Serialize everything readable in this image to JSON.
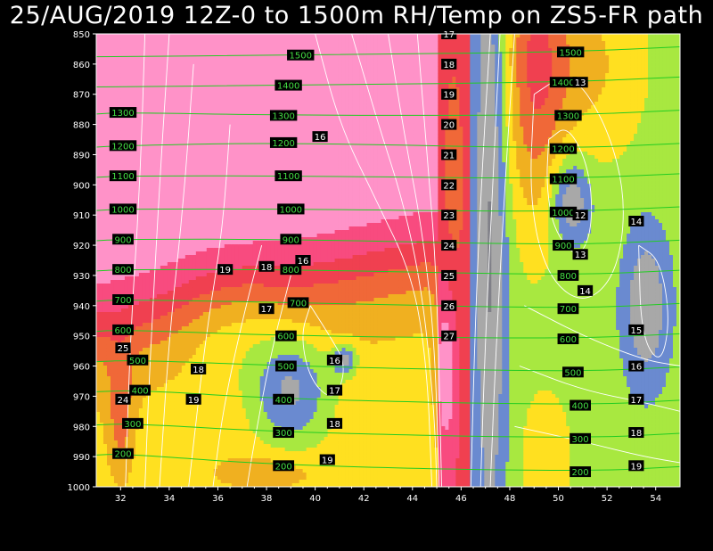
{
  "title": "25/AUG/2019 12Z-0 to 1500m RH/Temp on ZS5-FR path",
  "colors": {
    "background": "#000000",
    "rh_scale": [
      "#202020",
      "#505058",
      "#808088",
      "#a8a8a8",
      "#6a8ad0",
      "#a8e840",
      "#ffe020",
      "#f0b020",
      "#f06838",
      "#f04050",
      "#f84b7f",
      "#ff92c8"
    ],
    "temp_contour": "#ffffff",
    "height_contour": "#22cc22",
    "height_label_bg": "#000000",
    "height_label_text": "#44dd44"
  },
  "chart_data": {
    "type": "heatmap",
    "title": "25/AUG/2019 12Z-0 to 1500m RH/Temp on ZS5-FR path",
    "xlabel": "",
    "ylabel": "",
    "xlim": [
      31,
      55
    ],
    "ylim": [
      1000,
      850
    ],
    "y_scale": "pressure (hPa), decreasing upward",
    "x_ticks": [
      "32",
      "34",
      "36",
      "38",
      "40",
      "42",
      "44",
      "46",
      "48",
      "50",
      "52",
      "54"
    ],
    "y_ticks": [
      "850",
      "860",
      "870",
      "880",
      "890",
      "900",
      "910",
      "920",
      "930",
      "940",
      "950",
      "960",
      "970",
      "980",
      "990",
      "1000"
    ],
    "fill_field": "relative humidity (shaded)",
    "height_contours": {
      "name": "geopotential height (m)",
      "levels": [
        200,
        300,
        400,
        500,
        600,
        700,
        800,
        900,
        1000,
        1100,
        1200,
        1300,
        1400,
        1500
      ],
      "label_points": [
        {
          "v": 1500,
          "x": 39.4,
          "y": 857
        },
        {
          "v": 1400,
          "x": 38.9,
          "y": 867
        },
        {
          "v": 1300,
          "x": 38.7,
          "y": 877
        },
        {
          "v": 1200,
          "x": 38.7,
          "y": 886
        },
        {
          "v": 1100,
          "x": 38.9,
          "y": 897
        },
        {
          "v": 1000,
          "x": 39.0,
          "y": 908
        },
        {
          "v": 900,
          "x": 39.0,
          "y": 918
        },
        {
          "v": 800,
          "x": 39.0,
          "y": 928
        },
        {
          "v": 700,
          "x": 39.3,
          "y": 939
        },
        {
          "v": 600,
          "x": 38.8,
          "y": 950
        },
        {
          "v": 500,
          "x": 38.8,
          "y": 960
        },
        {
          "v": 400,
          "x": 38.7,
          "y": 971
        },
        {
          "v": 300,
          "x": 38.7,
          "y": 982
        },
        {
          "v": 200,
          "x": 38.7,
          "y": 993
        },
        {
          "v": 1300,
          "x": 32.1,
          "y": 876
        },
        {
          "v": 1200,
          "x": 32.1,
          "y": 887
        },
        {
          "v": 1100,
          "x": 32.1,
          "y": 897
        },
        {
          "v": 1000,
          "x": 32.1,
          "y": 908
        },
        {
          "v": 900,
          "x": 32.1,
          "y": 918
        },
        {
          "v": 800,
          "x": 32.1,
          "y": 928
        },
        {
          "v": 700,
          "x": 32.1,
          "y": 938
        },
        {
          "v": 600,
          "x": 32.1,
          "y": 948
        },
        {
          "v": 500,
          "x": 32.7,
          "y": 958
        },
        {
          "v": 400,
          "x": 32.8,
          "y": 968
        },
        {
          "v": 300,
          "x": 32.5,
          "y": 979
        },
        {
          "v": 200,
          "x": 32.1,
          "y": 989
        },
        {
          "v": 1500,
          "x": 50.5,
          "y": 856
        },
        {
          "v": 1400,
          "x": 50.2,
          "y": 866
        },
        {
          "v": 1300,
          "x": 50.4,
          "y": 877
        },
        {
          "v": 1200,
          "x": 50.2,
          "y": 888
        },
        {
          "v": 1100,
          "x": 50.2,
          "y": 898
        },
        {
          "v": 1000,
          "x": 50.2,
          "y": 909
        },
        {
          "v": 900,
          "x": 50.2,
          "y": 920
        },
        {
          "v": 800,
          "x": 50.4,
          "y": 930
        },
        {
          "v": 700,
          "x": 50.4,
          "y": 941
        },
        {
          "v": 600,
          "x": 50.4,
          "y": 951
        },
        {
          "v": 500,
          "x": 50.6,
          "y": 962
        },
        {
          "v": 400,
          "x": 50.9,
          "y": 973
        },
        {
          "v": 300,
          "x": 50.9,
          "y": 984
        },
        {
          "v": 200,
          "x": 50.9,
          "y": 995
        }
      ]
    },
    "temperature_contours": {
      "name": "temperature (°C)",
      "label_points": [
        {
          "v": 17,
          "x": 45.5,
          "y": 850
        },
        {
          "v": 18,
          "x": 45.5,
          "y": 860
        },
        {
          "v": 19,
          "x": 45.5,
          "y": 870
        },
        {
          "v": 20,
          "x": 45.5,
          "y": 880
        },
        {
          "v": 21,
          "x": 45.5,
          "y": 890
        },
        {
          "v": 22,
          "x": 45.5,
          "y": 900
        },
        {
          "v": 23,
          "x": 45.5,
          "y": 910
        },
        {
          "v": 24,
          "x": 45.5,
          "y": 920
        },
        {
          "v": 25,
          "x": 45.5,
          "y": 930
        },
        {
          "v": 26,
          "x": 45.5,
          "y": 940
        },
        {
          "v": 27,
          "x": 45.5,
          "y": 950
        },
        {
          "v": 16,
          "x": 40.2,
          "y": 884
        },
        {
          "v": 16,
          "x": 39.5,
          "y": 925
        },
        {
          "v": 16,
          "x": 40.8,
          "y": 958
        },
        {
          "v": 17,
          "x": 38.0,
          "y": 941
        },
        {
          "v": 17,
          "x": 40.8,
          "y": 968
        },
        {
          "v": 18,
          "x": 38.0,
          "y": 927
        },
        {
          "v": 18,
          "x": 35.2,
          "y": 961
        },
        {
          "v": 18,
          "x": 40.8,
          "y": 979
        },
        {
          "v": 19,
          "x": 36.3,
          "y": 928
        },
        {
          "v": 19,
          "x": 35.0,
          "y": 971
        },
        {
          "v": 19,
          "x": 40.5,
          "y": 991
        },
        {
          "v": 24,
          "x": 32.1,
          "y": 971
        },
        {
          "v": 25,
          "x": 32.1,
          "y": 954
        },
        {
          "v": 12,
          "x": 50.9,
          "y": 910
        },
        {
          "v": 13,
          "x": 50.9,
          "y": 923
        },
        {
          "v": 13,
          "x": 50.9,
          "y": 866
        },
        {
          "v": 14,
          "x": 53.2,
          "y": 912
        },
        {
          "v": 14,
          "x": 51.1,
          "y": 935
        },
        {
          "v": 15,
          "x": 53.2,
          "y": 948
        },
        {
          "v": 16,
          "x": 53.2,
          "y": 960
        },
        {
          "v": 17,
          "x": 53.2,
          "y": 971
        },
        {
          "v": 18,
          "x": 53.2,
          "y": 982
        },
        {
          "v": 19,
          "x": 53.2,
          "y": 993
        }
      ]
    },
    "grid": false,
    "legend": "none"
  }
}
